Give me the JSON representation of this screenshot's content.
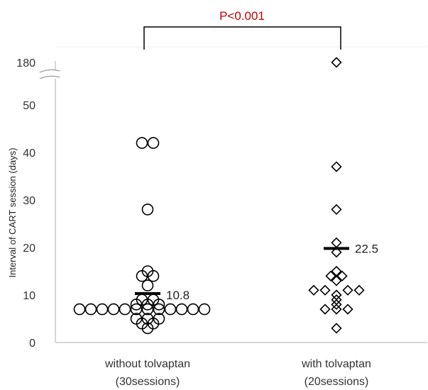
{
  "chart_data": {
    "type": "scatter",
    "ylabel": "Interval of CART session (days)",
    "categories": [
      {
        "line1": "without tolvaptan",
        "line2": "(30sessions)"
      },
      {
        "line1": "with tolvaptan",
        "line2": "(20sessions)"
      }
    ],
    "y_ticks": [
      "0",
      "10",
      "20",
      "30",
      "40",
      "50",
      "180"
    ],
    "ylim": [
      0,
      55
    ],
    "axis_break": {
      "from": 55,
      "to": 180
    },
    "significance": {
      "label": "P<0.001",
      "color": "#c00000"
    },
    "series": [
      {
        "category_index": 0,
        "marker": "circle",
        "mean": 10.8,
        "mean_label": "10.8",
        "points": [
          {
            "x": -6,
            "y": 7
          },
          {
            "x": -5,
            "y": 7
          },
          {
            "x": -4,
            "y": 7
          },
          {
            "x": -3,
            "y": 7
          },
          {
            "x": -2,
            "y": 7
          },
          {
            "x": 2,
            "y": 7
          },
          {
            "x": 3,
            "y": 7
          },
          {
            "x": 4,
            "y": 7
          },
          {
            "x": 5,
            "y": 7
          },
          {
            "x": -1,
            "y": 7
          },
          {
            "x": 0,
            "y": 7
          },
          {
            "x": 1,
            "y": 7
          },
          {
            "x": -1,
            "y": 8
          },
          {
            "x": 0,
            "y": 8
          },
          {
            "x": 1,
            "y": 8
          },
          {
            "x": -0.5,
            "y": 9
          },
          {
            "x": 0.5,
            "y": 9
          },
          {
            "x": -1,
            "y": 5
          },
          {
            "x": 0,
            "y": 5
          },
          {
            "x": 1,
            "y": 5
          },
          {
            "x": -0.5,
            "y": 4
          },
          {
            "x": 0.5,
            "y": 4
          },
          {
            "x": 0,
            "y": 3
          },
          {
            "x": 0,
            "y": 12
          },
          {
            "x": -0.5,
            "y": 14
          },
          {
            "x": 0.5,
            "y": 14
          },
          {
            "x": 0,
            "y": 15
          },
          {
            "x": 0,
            "y": 28
          },
          {
            "x": -0.5,
            "y": 42
          },
          {
            "x": 0.5,
            "y": 42
          }
        ]
      },
      {
        "category_index": 1,
        "marker": "diamond",
        "mean": 22.5,
        "mean_label": "22.5",
        "points": [
          {
            "x": 0,
            "y": 180
          },
          {
            "x": 0,
            "y": 37
          },
          {
            "x": 0,
            "y": 28
          },
          {
            "x": 0,
            "y": 21
          },
          {
            "x": 0,
            "y": 19
          },
          {
            "x": -0.5,
            "y": 14
          },
          {
            "x": 0.5,
            "y": 14
          },
          {
            "x": 0,
            "y": 15
          },
          {
            "x": 0,
            "y": 13
          },
          {
            "x": -2,
            "y": 11
          },
          {
            "x": -1,
            "y": 11
          },
          {
            "x": 1,
            "y": 11
          },
          {
            "x": 2,
            "y": 11
          },
          {
            "x": 0,
            "y": 10
          },
          {
            "x": 0,
            "y": 9
          },
          {
            "x": -1,
            "y": 7
          },
          {
            "x": 1,
            "y": 7
          },
          {
            "x": 0,
            "y": 8
          },
          {
            "x": 0,
            "y": 7
          },
          {
            "x": 0,
            "y": 3
          }
        ]
      }
    ]
  }
}
